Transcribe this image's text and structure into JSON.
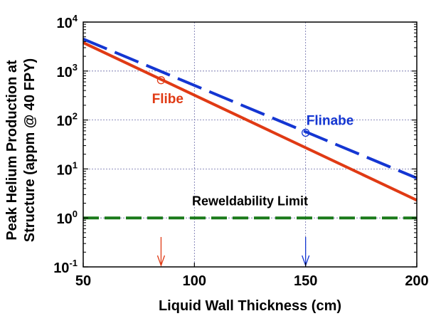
{
  "chart_data": {
    "type": "line",
    "xlabel": "Liquid Wall Thickness (cm)",
    "ylabel_lines": [
      "Peak Helium Production at",
      "Structure (appm @ 40 FPY)"
    ],
    "xlim": [
      50,
      200
    ],
    "ylim": [
      0.1,
      10000
    ],
    "yscale": "log",
    "grid": true,
    "x_ticks": [
      "50",
      "100",
      "150",
      "200"
    ],
    "y_ticks": [
      {
        "value": 10000,
        "base": "10",
        "exp": "4"
      },
      {
        "value": 1000,
        "base": "10",
        "exp": "3"
      },
      {
        "value": 100,
        "base": "10",
        "exp": "2"
      },
      {
        "value": 10,
        "base": "10",
        "exp": "1"
      },
      {
        "value": 1,
        "base": "10",
        "exp": "0"
      },
      {
        "value": 0.1,
        "base": "10",
        "exp": "-1"
      }
    ],
    "series": [
      {
        "name": "Flibe",
        "x": [
          50,
          200
        ],
        "y": [
          3800,
          2.3
        ],
        "color": "#e03a14",
        "style": "solid",
        "marker": {
          "x": 85,
          "y": 650
        }
      },
      {
        "name": "Flinabe",
        "x": [
          50,
          200
        ],
        "y": [
          4500,
          6.5
        ],
        "color": "#1436d2",
        "style": "dashed",
        "marker": {
          "x": 150,
          "y": 55
        }
      }
    ],
    "reference_line": {
      "label": "Reweldability Limit",
      "y": 1,
      "color": "#1a7a1a",
      "style": "dashed"
    },
    "arrows": [
      {
        "x": 85,
        "color": "#e03a14"
      },
      {
        "x": 150,
        "color": "#1436d2"
      }
    ],
    "label_positions": {
      "Flibe": {
        "x": 88,
        "y": 220
      },
      "Flinabe": {
        "x": 161,
        "y": 80
      },
      "Reweldability Limit": {
        "x": 125,
        "y": 1.8
      }
    }
  }
}
